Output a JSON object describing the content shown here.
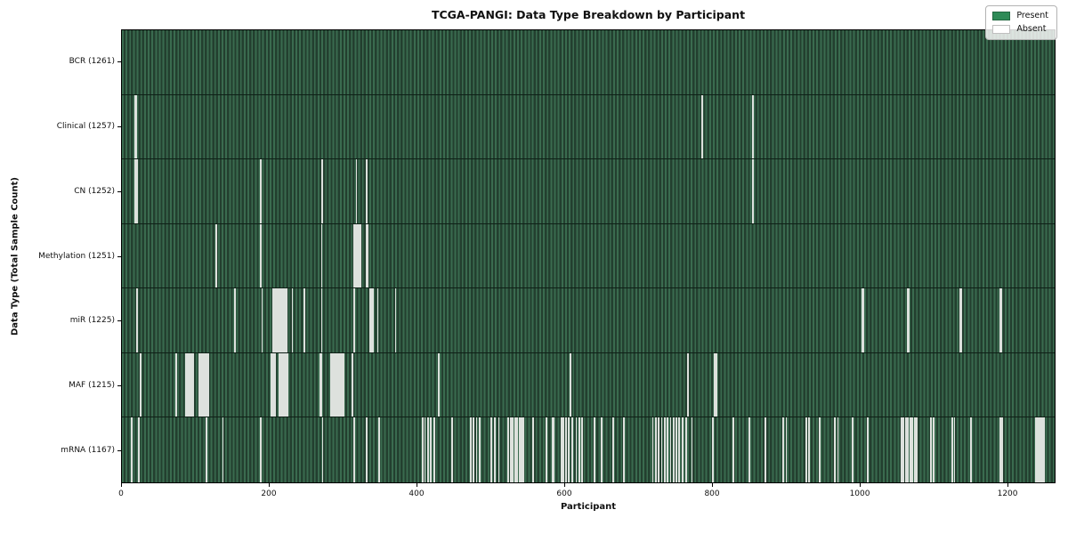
{
  "figure": {
    "background": "#ffffff"
  },
  "chart_data": {
    "type": "heatmap",
    "title": "TCGA-PANGI: Data Type Breakdown by Participant",
    "xlabel": "Participant",
    "ylabel": "Data Type (Total Sample Count)",
    "x_ticks": [
      0,
      200,
      400,
      600,
      800,
      1000,
      1200
    ],
    "x_axis_max": 1265,
    "n_participants": 1261,
    "grid": false,
    "legend_position": "upper right",
    "legend": [
      {
        "label": "Present",
        "color": "#2e8b57"
      },
      {
        "label": "Absent",
        "color": "#ffffff"
      }
    ],
    "colors": {
      "present_fill": "#2e8b57",
      "field_light": "#3a6b4f",
      "field_dark": "#233f2f",
      "absent_stripe": "#dde1dd",
      "row_separator": "#0e2016"
    },
    "rows": [
      {
        "name": "bcr",
        "label": "BCR (1261)",
        "data_type": "BCR",
        "total_sample_count": 1261,
        "absent": []
      },
      {
        "name": "clinical",
        "label": "Clinical (1257)",
        "data_type": "Clinical",
        "total_sample_count": 1257,
        "absent": [
          17,
          18,
          786,
          855
        ]
      },
      {
        "name": "cn",
        "label": "CN (1252)",
        "data_type": "CN",
        "total_sample_count": 1252,
        "absent": [
          17,
          18,
          19,
          187,
          270,
          271,
          317,
          331,
          855
        ]
      },
      {
        "name": "methylation",
        "label": "Methylation (1251)",
        "data_type": "Methylation",
        "total_sample_count": 1251,
        "absent": [
          127,
          187,
          270,
          314,
          316,
          318,
          320,
          322,
          331,
          332
        ]
      },
      {
        "name": "mir",
        "label": "miR (1225)",
        "data_type": "miR",
        "total_sample_count": 1225,
        "absent": [
          19,
          152,
          189,
          204,
          205,
          206,
          207,
          208,
          209,
          210,
          211,
          212,
          213,
          214,
          216,
          218,
          220,
          222,
          230,
          246,
          270,
          314,
          336,
          338,
          340,
          346,
          370,
          1003,
          1004,
          1065,
          1066,
          1136,
          1137,
          1190,
          1191,
          1192
        ]
      },
      {
        "name": "maf",
        "label": "MAF (1215)",
        "data_type": "MAF",
        "total_sample_count": 1215,
        "absent": [
          24,
          73,
          86,
          88,
          90,
          92,
          94,
          96,
          104,
          106,
          108,
          110,
          112,
          114,
          116,
          202,
          203,
          204,
          205,
          206,
          207,
          212,
          214,
          216,
          218,
          220,
          222,
          224,
          268,
          270,
          282,
          284,
          286,
          288,
          290,
          292,
          294,
          296,
          298,
          300,
          312,
          429,
          607,
          767,
          803,
          805
        ]
      },
      {
        "name": "mrna",
        "label": "mRNA (1167)",
        "data_type": "mRNA",
        "total_sample_count": 1167,
        "absent": [
          12,
          22,
          114,
          136,
          187,
          271,
          314,
          331,
          348,
          407,
          410,
          414,
          418,
          423,
          447,
          472,
          476,
          480,
          484,
          500,
          505,
          510,
          523,
          526,
          529,
          532,
          535,
          538,
          541,
          543,
          557,
          575,
          583,
          585,
          595,
          598,
          601,
          605,
          610,
          615,
          619,
          623,
          640,
          650,
          665,
          680,
          719,
          723,
          727,
          731,
          735,
          739,
          743,
          747,
          751,
          755,
          759,
          764,
          772,
          800,
          828,
          850,
          872,
          896,
          900,
          927,
          931,
          945,
          966,
          970,
          990,
          1010,
          1056,
          1059,
          1062,
          1065,
          1068,
          1071,
          1074,
          1077,
          1096,
          1100,
          1125,
          1128,
          1150,
          1190,
          1193,
          1238,
          1240,
          1242,
          1244,
          1246,
          1248,
          1250
        ]
      }
    ]
  }
}
